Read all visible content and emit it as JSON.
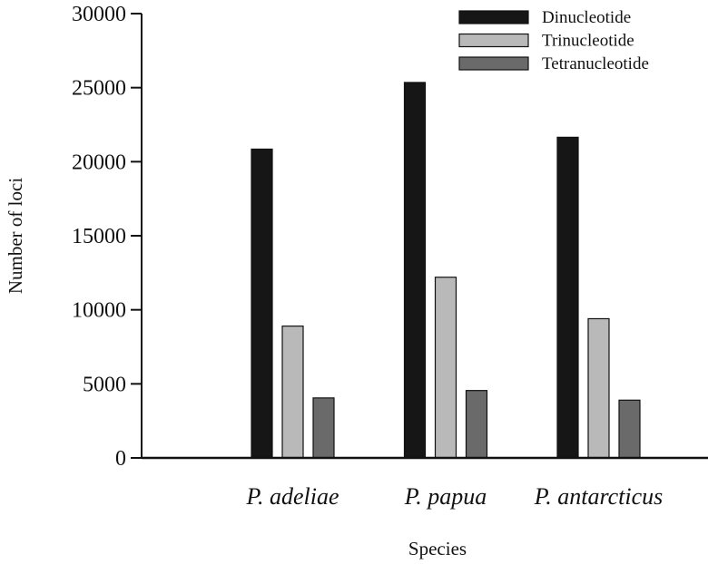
{
  "chart_data": {
    "type": "bar",
    "categories": [
      "P. adeliae",
      "P. papua",
      "P. antarcticus"
    ],
    "series": [
      {
        "name": "Dinucleotide",
        "values": [
          20850,
          25350,
          21650
        ],
        "color": "#161616"
      },
      {
        "name": "Trinucleotide",
        "values": [
          8900,
          12200,
          9400
        ],
        "color": "#b9b9b9"
      },
      {
        "name": "Tetranucleotide",
        "values": [
          4050,
          4550,
          3900
        ],
        "color": "#6a6a6a"
      }
    ],
    "xlabel": "Species",
    "ylabel": "Number of loci",
    "ylim": [
      0,
      30000
    ],
    "yticks": [
      0,
      5000,
      10000,
      15000,
      20000,
      25000,
      30000
    ],
    "grid": false,
    "legend": "top-right"
  }
}
